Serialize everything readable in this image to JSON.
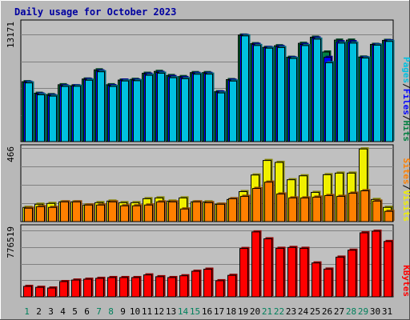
{
  "chart_data": [
    {
      "type": "bar",
      "title": "Daily usage for October 2023",
      "ylabel": "",
      "ymax_label": "13171",
      "ylim": [
        0,
        13171
      ],
      "legend": {
        "placement": "right",
        "items": [
          {
            "label": "Pages",
            "color": "#00C0E0"
          },
          {
            "label": "Files",
            "color": "#0000FF"
          },
          {
            "label": "Hits",
            "color": "#008040"
          }
        ],
        "separator": "/"
      },
      "categories": [
        "1",
        "2",
        "3",
        "4",
        "5",
        "6",
        "7",
        "8",
        "9",
        "10",
        "11",
        "12",
        "13",
        "14",
        "15",
        "16",
        "17",
        "18",
        "19",
        "20",
        "21",
        "22",
        "23",
        "24",
        "25",
        "26",
        "27",
        "28",
        "29",
        "30",
        "31"
      ],
      "series": [
        {
          "name": "Hits",
          "color": "#008040",
          "values": [
            7360,
            5940,
            5770,
            6990,
            6860,
            7690,
            8820,
            6990,
            7560,
            7650,
            8400,
            8630,
            8120,
            7990,
            8480,
            8480,
            6130,
            7620,
            13090,
            12030,
            11570,
            11780,
            10360,
            12080,
            12830,
            11010,
            12470,
            12470,
            10390,
            11950,
            12440
          ]
        },
        {
          "name": "Files",
          "color": "#0000FF",
          "values": [
            7290,
            5850,
            5670,
            6860,
            6860,
            7640,
            8680,
            6880,
            7560,
            7560,
            8290,
            8500,
            7990,
            7870,
            8380,
            8380,
            6090,
            7550,
            13050,
            11950,
            11560,
            11680,
            10300,
            11940,
            12730,
            10350,
            12270,
            12280,
            10330,
            11900,
            12390
          ]
        },
        {
          "name": "Pages",
          "color": "#00C0E0",
          "values": [
            7210,
            5750,
            5590,
            6780,
            6800,
            7540,
            8580,
            6780,
            7450,
            7480,
            8150,
            8400,
            7850,
            7730,
            8280,
            8290,
            5980,
            7440,
            12990,
            11810,
            11480,
            11560,
            10220,
            11800,
            12590,
            9690,
            12100,
            12100,
            10270,
            11850,
            12310
          ]
        }
      ]
    },
    {
      "type": "bar",
      "ymax_label": "466",
      "ylim": [
        0,
        466
      ],
      "legend": {
        "placement": "right",
        "items": [
          {
            "label": "Sites",
            "color": "#FF8000"
          },
          {
            "label": "Visits",
            "color": "#F0F000"
          }
        ],
        "separator": "/"
      },
      "categories": [
        "1",
        "2",
        "3",
        "4",
        "5",
        "6",
        "7",
        "8",
        "9",
        "10",
        "11",
        "12",
        "13",
        "14",
        "15",
        "16",
        "17",
        "18",
        "19",
        "20",
        "21",
        "22",
        "23",
        "24",
        "25",
        "26",
        "27",
        "28",
        "29",
        "30",
        "31"
      ],
      "series": [
        {
          "name": "Visits",
          "color": "#F0F000",
          "values": [
            90,
            110,
            115,
            125,
            125,
            105,
            120,
            130,
            120,
            120,
            145,
            150,
            130,
            150,
            125,
            125,
            110,
            140,
            190,
            295,
            387,
            375,
            265,
            290,
            185,
            297,
            307,
            307,
            460,
            140,
            90
          ]
        },
        {
          "name": "Sites",
          "color": "#FF8000",
          "values": [
            85,
            95,
            90,
            125,
            125,
            105,
            105,
            125,
            100,
            100,
            105,
            125,
            125,
            80,
            125,
            120,
            110,
            145,
            160,
            210,
            250,
            175,
            150,
            150,
            155,
            165,
            160,
            180,
            195,
            130,
            65
          ]
        }
      ]
    },
    {
      "type": "bar",
      "ymax_label": "776519",
      "ylim": [
        0,
        776519
      ],
      "legend": {
        "placement": "right",
        "items": [
          {
            "label": "KBytes",
            "color": "#FF0000"
          }
        ]
      },
      "categories": [
        "1",
        "2",
        "3",
        "4",
        "5",
        "6",
        "7",
        "8",
        "9",
        "10",
        "11",
        "12",
        "13",
        "14",
        "15",
        "16",
        "17",
        "18",
        "19",
        "20",
        "21",
        "22",
        "23",
        "24",
        "25",
        "26",
        "27",
        "28",
        "29",
        "30",
        "31"
      ],
      "series": [
        {
          "name": "KBytes",
          "color": "#FF0000",
          "values": [
            122000,
            111000,
            103000,
            178000,
            196000,
            206000,
            216000,
            225000,
            225000,
            225000,
            256000,
            235000,
            225000,
            246000,
            299000,
            323000,
            188000,
            251000,
            565000,
            759000,
            678000,
            567000,
            577000,
            567000,
            396000,
            324000,
            464000,
            545000,
            748000,
            767000,
            647000
          ]
        }
      ]
    }
  ],
  "day_label_colors": {
    "weekday": "#000000",
    "weekend": "#00805C"
  },
  "weekend_days": [
    1,
    7,
    8,
    14,
    15,
    21,
    22,
    28,
    29
  ]
}
